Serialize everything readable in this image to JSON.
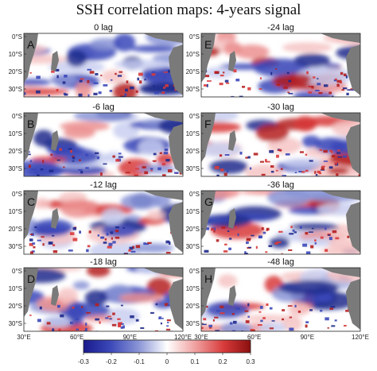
{
  "title": "SSH correlation maps: 4-years signal",
  "panels": [
    {
      "letter": "A",
      "lag": "0 lag"
    },
    {
      "letter": "E",
      "lag": "-24 lag"
    },
    {
      "letter": "B",
      "lag": "-6 lag"
    },
    {
      "letter": "F",
      "lag": "-30 lag"
    },
    {
      "letter": "C",
      "lag": "-12 lag"
    },
    {
      "letter": "G",
      "lag": "-36 lag"
    },
    {
      "letter": "D",
      "lag": "-18 lag"
    },
    {
      "letter": "H",
      "lag": "-48 lag"
    }
  ],
  "lat_ticks": [
    "0°S",
    "10°S",
    "20°S",
    "30°S"
  ],
  "lon_ticks": [
    "30°E",
    "60°E",
    "90°E",
    "120°E"
  ],
  "colorbar": {
    "ticks": [
      "-0.3",
      "-0.2",
      "-0.1",
      "0",
      "0.1",
      "0.2",
      "0.3"
    ],
    "colors": [
      "#1a1a8c",
      "#3b48b8",
      "#8a95d6",
      "#ffffff",
      "#f0a0a0",
      "#d83a3a",
      "#8a0f0f"
    ]
  },
  "colors": {
    "land": "#7a7a7a",
    "positive": "#d83a3a",
    "negative": "#3b48b8"
  }
}
